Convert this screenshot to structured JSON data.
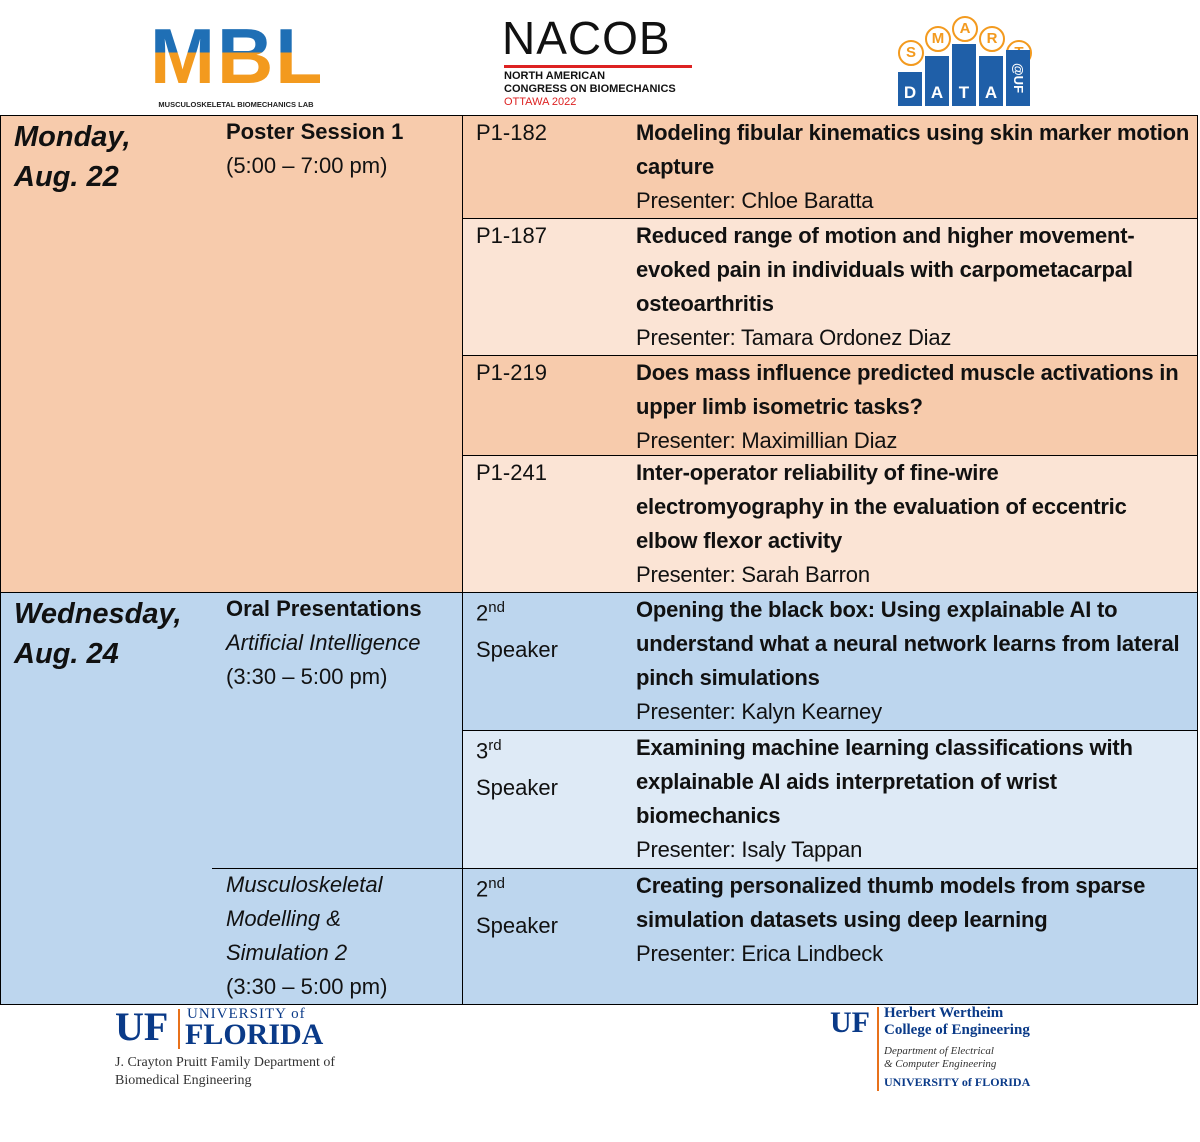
{
  "header": {
    "mbl": {
      "letters": "MBL",
      "caption": "MUSCULOSKELETAL BIOMECHANICS LAB"
    },
    "nacob": {
      "name": "NACOB",
      "line1": "NORTH AMERICAN",
      "line2": "CONGRESS ON BIOMECHANICS",
      "line3": "OTTAWA 2022"
    },
    "smart_data": {
      "top": [
        "S",
        "M",
        "A",
        "R",
        "T"
      ],
      "bottom": [
        "D",
        "A",
        "T",
        "A"
      ],
      "tag": "@UF"
    }
  },
  "schedule": [
    {
      "day": [
        "Monday,",
        "Aug. 22"
      ],
      "sessions": [
        {
          "title": "Poster Session 1",
          "time": "(5:00 – 7:00 pm)",
          "talks": [
            {
              "id": "P1-182",
              "title": "Modeling fibular kinematics using skin marker motion capture",
              "presenter": "Presenter: Chloe Baratta"
            },
            {
              "id": "P1-187",
              "title": "Reduced range of motion and higher movement-evoked pain in individuals with carpometacarpal osteoarthritis",
              "presenter": "Presenter: Tamara Ordonez Diaz"
            },
            {
              "id": "P1-219",
              "title": "Does mass influence predicted muscle activations in upper limb isometric tasks?",
              "presenter": "Presenter: Maximillian Diaz"
            },
            {
              "id": "P1-241",
              "title": "Inter-operator reliability of fine-wire electromyography in the evaluation of eccentric elbow flexor activity",
              "presenter": "Presenter: Sarah Barron"
            }
          ]
        }
      ]
    },
    {
      "day": [
        "Wednesday,",
        "Aug. 24"
      ],
      "sessions": [
        {
          "title": "Oral Presentations",
          "topic": "Artificial Intelligence",
          "time": "(3:30 – 5:00 pm)",
          "talks": [
            {
              "id": {
                "ordinal": "2",
                "suffix": "nd",
                "label": "Speaker"
              },
              "title": "Opening the black box: Using explainable AI to understand what a neural network learns from lateral pinch simulations",
              "presenter": "Presenter: Kalyn Kearney"
            },
            {
              "id": {
                "ordinal": "3",
                "suffix": "rd",
                "label": "Speaker"
              },
              "title": "Examining machine learning classifications with explainable AI aids interpretation of wrist biomechanics",
              "presenter": "Presenter: Isaly Tappan"
            }
          ]
        },
        {
          "topic": "Musculoskeletal Modelling & Simulation 2",
          "time": "(3:30 – 5:00 pm)",
          "talks": [
            {
              "id": {
                "ordinal": "2",
                "suffix": "nd",
                "label": "Speaker"
              },
              "title": "Creating personalized thumb models from sparse simulation datasets using deep learning",
              "presenter": "Presenter: Erica Lindbeck"
            }
          ]
        }
      ]
    }
  ],
  "footer": {
    "left": {
      "mark": "UF",
      "university": "UNIVERSITY of",
      "florida": "FLORIDA",
      "dept1": "J. Crayton Pruitt Family Department of",
      "dept2": "Biomedical Engineering"
    },
    "right": {
      "mark": "UF",
      "line1": "Herbert Wertheim",
      "line2": "College of Engineering",
      "dept1": "Department of Electrical",
      "dept2": "& Computer Engineering",
      "university": "UNIVERSITY of FLORIDA"
    }
  }
}
